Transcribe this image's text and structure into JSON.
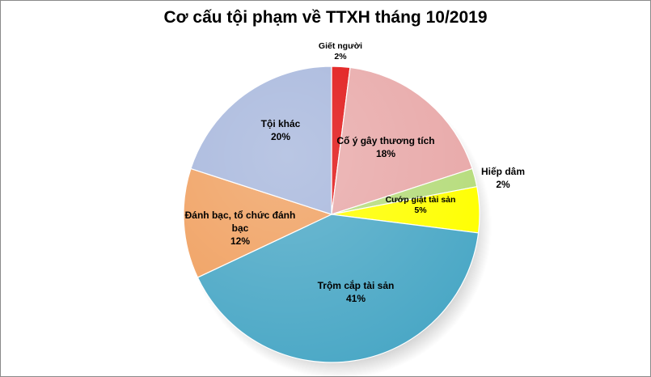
{
  "chart_data": {
    "type": "pie",
    "title": "Cơ cấu tội phạm về TTXH  tháng 10/2019",
    "slices": [
      {
        "label": "Giết người",
        "percent_label": "2%",
        "value": 2,
        "color": "#e01010"
      },
      {
        "label": "Cố ý gây thương tích",
        "percent_label": "18%",
        "value": 18,
        "color": "#e8a8a8"
      },
      {
        "label": "Hiếp dâm",
        "percent_label": "2%",
        "value": 2,
        "color": "#b6dc7c"
      },
      {
        "label": "Cướp giật tài sản",
        "percent_label": "5%",
        "value": 5,
        "color": "#ffff00"
      },
      {
        "label": "Trộm cắp tài sản",
        "percent_label": "41%",
        "value": 41,
        "color": "#4ba8c6"
      },
      {
        "label": "Đánh bạc, tổ chức đánh",
        "label_line2": "bạc",
        "percent_label": "12%",
        "value": 12,
        "color": "#f0a060"
      },
      {
        "label": "Tội khác",
        "percent_label": "20%",
        "value": 20,
        "color": "#a6b6dc"
      }
    ]
  }
}
